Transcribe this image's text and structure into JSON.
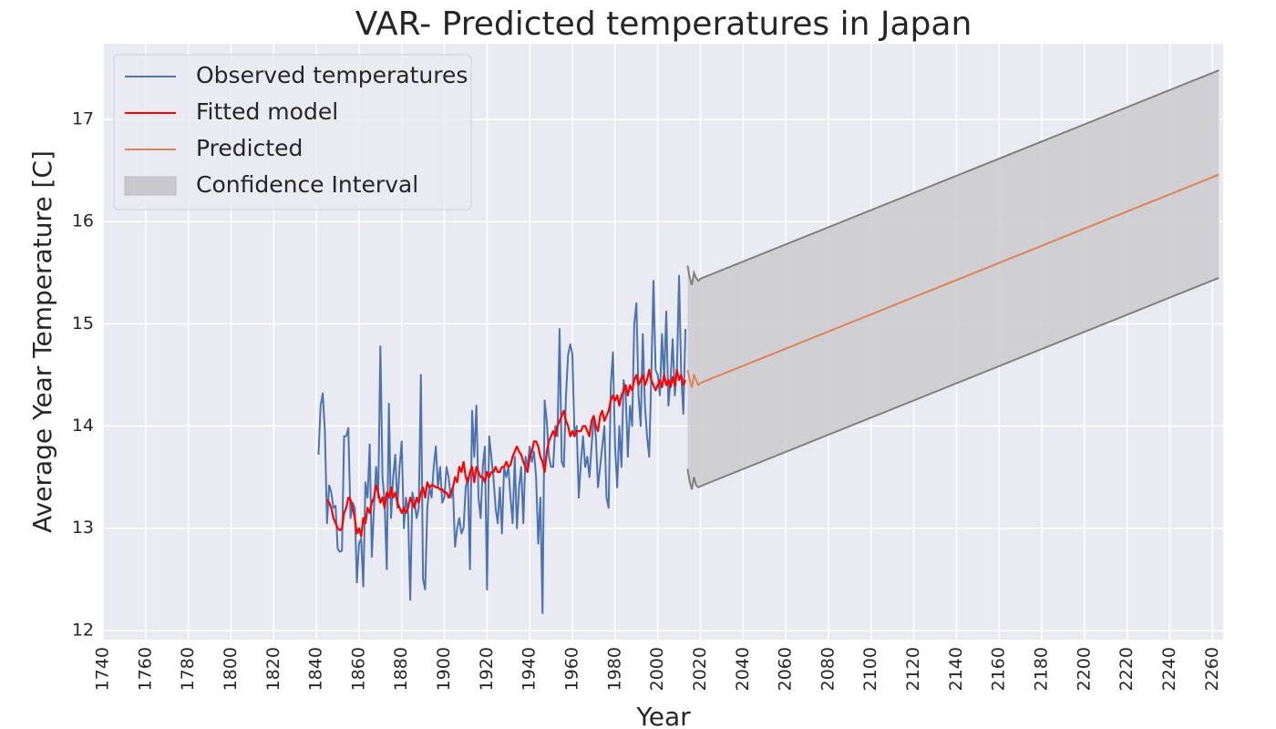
{
  "chart_data": {
    "type": "line",
    "title": "VAR- Predicted temperatures in Japan",
    "xlabel": "Year",
    "ylabel": "Average Year Temperature [C]",
    "xlim": [
      1740,
      2265
    ],
    "ylim": [
      11.91,
      17.74
    ],
    "xticks": [
      1740,
      1760,
      1780,
      1800,
      1820,
      1840,
      1860,
      1880,
      1900,
      1920,
      1940,
      1960,
      1980,
      2000,
      2020,
      2040,
      2060,
      2080,
      2100,
      2120,
      2140,
      2160,
      2180,
      2200,
      2220,
      2240,
      2260
    ],
    "yticks": [
      12,
      13,
      14,
      15,
      16,
      17
    ],
    "grid": true,
    "legend": "upper left",
    "x": [
      1841,
      1842,
      1843,
      1844,
      1845,
      1846,
      1847,
      1848,
      1849,
      1850,
      1851,
      1852,
      1853,
      1854,
      1855,
      1856,
      1857,
      1858,
      1859,
      1860,
      1861,
      1862,
      1863,
      1864,
      1865,
      1866,
      1867,
      1868,
      1869,
      1870,
      1871,
      1872,
      1873,
      1874,
      1875,
      1876,
      1877,
      1878,
      1879,
      1880,
      1881,
      1882,
      1883,
      1884,
      1885,
      1886,
      1887,
      1888,
      1889,
      1890,
      1891,
      1892,
      1893,
      1894,
      1895,
      1896,
      1897,
      1898,
      1899,
      1900,
      1901,
      1902,
      1903,
      1904,
      1905,
      1906,
      1907,
      1908,
      1909,
      1910,
      1911,
      1912,
      1913,
      1914,
      1915,
      1916,
      1917,
      1918,
      1919,
      1920,
      1921,
      1922,
      1923,
      1924,
      1925,
      1926,
      1927,
      1928,
      1929,
      1930,
      1931,
      1932,
      1933,
      1934,
      1935,
      1936,
      1937,
      1938,
      1939,
      1940,
      1941,
      1942,
      1943,
      1944,
      1945,
      1946,
      1947,
      1948,
      1949,
      1950,
      1951,
      1952,
      1953,
      1954,
      1955,
      1956,
      1957,
      1958,
      1959,
      1960,
      1961,
      1962,
      1963,
      1964,
      1965,
      1966,
      1967,
      1968,
      1969,
      1970,
      1971,
      1972,
      1973,
      1974,
      1975,
      1976,
      1977,
      1978,
      1979,
      1980,
      1981,
      1982,
      1983,
      1984,
      1985,
      1986,
      1987,
      1988,
      1989,
      1990,
      1991,
      1992,
      1993,
      1994,
      1995,
      1996,
      1997,
      1998,
      1999,
      2000,
      2001,
      2002,
      2003,
      2004,
      2005,
      2006,
      2007,
      2008,
      2009,
      2010,
      2011,
      2012,
      2013
    ],
    "series": [
      {
        "name": "Observed temperatures",
        "color": "#4c72b0",
        "values": [
          13.72,
          14.2,
          14.32,
          13.95,
          13.05,
          13.42,
          13.35,
          13.2,
          13.22,
          12.8,
          12.77,
          12.78,
          13.9,
          13.9,
          13.98,
          13.1,
          13.25,
          13.2,
          12.47,
          12.85,
          12.9,
          12.43,
          13.45,
          13.3,
          13.82,
          12.72,
          13.2,
          13.6,
          13.3,
          14.78,
          13.5,
          13.25,
          12.6,
          14.22,
          13.1,
          13.5,
          13.72,
          13.2,
          13.6,
          13.85,
          13.0,
          13.3,
          13.15,
          12.3,
          13.35,
          13.25,
          13.1,
          13.2,
          14.5,
          12.5,
          12.4,
          13.2,
          13.4,
          13.3,
          13.6,
          13.8,
          13.4,
          13.6,
          13.25,
          13.3,
          13.6,
          13.5,
          13.3,
          13.4,
          12.82,
          13.0,
          13.1,
          12.95,
          13.0,
          13.4,
          13.5,
          12.6,
          14.15,
          13.7,
          14.2,
          13.3,
          13.1,
          13.6,
          13.8,
          12.4,
          13.9,
          13.7,
          13.5,
          13.2,
          13.05,
          13.4,
          12.95,
          13.6,
          13.5,
          13.6,
          13.3,
          13.05,
          13.7,
          13.0,
          13.4,
          13.6,
          13.05,
          13.7,
          13.6,
          13.8,
          13.65,
          13.75,
          13.5,
          12.85,
          13.3,
          12.17,
          14.25,
          14.05,
          13.7,
          13.6,
          13.6,
          14.0,
          13.9,
          14.95,
          13.65,
          13.6,
          14.3,
          14.7,
          14.8,
          14.7,
          13.9,
          14.0,
          13.3,
          13.65,
          13.9,
          13.6,
          13.7,
          13.5,
          13.8,
          14.1,
          13.9,
          13.4,
          13.6,
          13.8,
          14.0,
          13.3,
          13.2,
          14.4,
          14.72,
          13.8,
          13.4,
          14.0,
          13.6,
          14.45,
          14.3,
          13.7,
          14.2,
          14.0,
          15.0,
          15.2,
          14.3,
          14.0,
          14.9,
          14.2,
          13.9,
          13.7,
          14.5,
          15.42,
          14.55,
          14.5,
          14.3,
          14.9,
          14.45,
          15.12,
          14.2,
          14.45,
          14.85,
          14.3,
          14.55,
          15.47,
          14.5,
          14.12,
          14.95
        ]
      },
      {
        "name": "Fitted model",
        "color": "#ff0000",
        "values": [
          null,
          null,
          null,
          null,
          13.28,
          13.25,
          13.2,
          13.1,
          13.05,
          13.0,
          12.98,
          13.0,
          13.15,
          13.2,
          13.3,
          13.28,
          13.2,
          13.1,
          12.95,
          13.0,
          12.92,
          13.1,
          13.05,
          13.2,
          13.15,
          13.25,
          13.3,
          13.42,
          13.35,
          13.25,
          13.3,
          13.2,
          13.35,
          13.3,
          13.4,
          13.3,
          13.35,
          13.25,
          13.2,
          13.15,
          13.2,
          13.15,
          13.2,
          13.3,
          13.25,
          13.2,
          13.3,
          13.25,
          13.35,
          13.4,
          13.3,
          13.45,
          13.4,
          13.42,
          13.42,
          13.4,
          13.4,
          13.38,
          13.38,
          13.35,
          13.35,
          13.3,
          13.35,
          13.4,
          13.5,
          13.45,
          13.6,
          13.55,
          13.65,
          13.5,
          13.45,
          13.55,
          13.6,
          13.45,
          13.6,
          13.55,
          13.5,
          13.5,
          13.45,
          13.55,
          13.5,
          13.55,
          13.55,
          13.6,
          13.55,
          13.55,
          13.6,
          13.6,
          13.65,
          13.6,
          13.62,
          13.7,
          13.75,
          13.8,
          13.75,
          13.72,
          13.65,
          13.6,
          13.55,
          13.7,
          13.75,
          13.85,
          13.85,
          13.8,
          13.7,
          13.65,
          13.55,
          13.75,
          13.85,
          13.9,
          13.95,
          13.9,
          14.0,
          14.05,
          14.1,
          14.15,
          14.05,
          14.0,
          13.9,
          13.95,
          13.9,
          13.95,
          13.95,
          13.95,
          14.0,
          14.0,
          13.95,
          13.9,
          14.05,
          14.1,
          14.0,
          13.95,
          14.1,
          14.15,
          14.05,
          14.1,
          14.15,
          14.25,
          14.3,
          14.25,
          14.3,
          14.2,
          14.3,
          14.35,
          14.4,
          14.3,
          14.4,
          14.35,
          14.45,
          14.5,
          14.4,
          14.45,
          14.5,
          14.4,
          14.45,
          14.55,
          14.45,
          14.4,
          14.35,
          14.4,
          14.45,
          14.38,
          14.5,
          14.4,
          14.45,
          14.38,
          14.48,
          14.4,
          14.55,
          14.45,
          14.5,
          14.4,
          14.45
        ]
      },
      {
        "name": "Predicted",
        "color": "#dd8452",
        "x": [
          2014,
          2015,
          2016,
          2017,
          2018,
          2019,
          2020,
          2021,
          2263
        ],
        "values": [
          14.55,
          14.45,
          14.38,
          14.5,
          14.45,
          14.4,
          14.42,
          14.43,
          16.46
        ]
      }
    ],
    "confidence_interval": {
      "name": "Confidence Interval",
      "color": "#c8c8cc",
      "edge_color": "#808080",
      "x": [
        2014,
        2015,
        2016,
        2017,
        2018,
        2019,
        2020,
        2021,
        2263
      ],
      "lower": [
        13.58,
        13.45,
        13.38,
        13.5,
        13.42,
        13.4,
        13.41,
        13.42,
        15.45
      ],
      "upper": [
        15.57,
        15.45,
        15.38,
        15.5,
        15.45,
        15.42,
        15.44,
        15.45,
        17.48
      ]
    }
  }
}
